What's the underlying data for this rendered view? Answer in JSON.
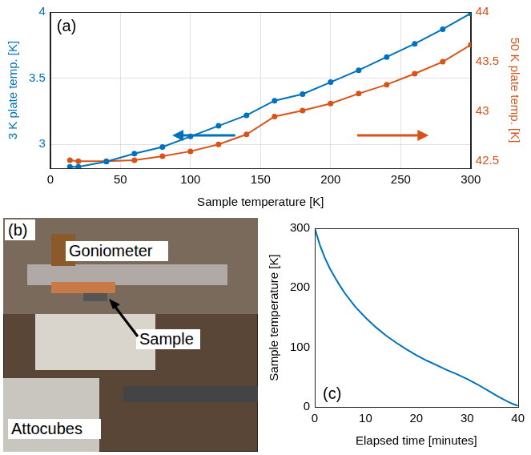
{
  "chart_data": [
    {
      "panel": "(a)",
      "type": "line",
      "x_label": "Sample temperature [K]",
      "y_label": "3 K plate temp. [K]",
      "y2_label": "50 K plate temp. [K]",
      "x": [
        14,
        20,
        40,
        60,
        80,
        100,
        120,
        140,
        160,
        180,
        200,
        220,
        240,
        260,
        280,
        300
      ],
      "series": [
        {
          "color": "#0072BD",
          "marker": "circle",
          "values": [
            2.83,
            2.83,
            2.87,
            2.93,
            2.98,
            3.06,
            3.14,
            3.22,
            3.33,
            3.38,
            3.47,
            3.56,
            3.66,
            3.76,
            3.87,
            3.99
          ]
        },
        {
          "color": "#D95319",
          "marker": "circle",
          "axis": "y2",
          "values": [
            42.51,
            42.5,
            42.5,
            42.51,
            42.55,
            42.6,
            42.67,
            42.77,
            42.95,
            43.01,
            43.08,
            43.18,
            43.27,
            43.38,
            43.5,
            43.67
          ]
        }
      ],
      "xlim": [
        0,
        300
      ],
      "xticks": [
        0,
        50,
        100,
        150,
        200,
        250,
        300
      ],
      "ylim": [
        2.82,
        4
      ],
      "yticks": [
        3,
        3.5,
        4
      ],
      "y2lim": [
        42.43,
        44
      ],
      "y2ticks": [
        42.5,
        43,
        43.5,
        44
      ],
      "grid": true
    },
    {
      "panel": "(b)",
      "type": "image",
      "annotations": [
        "Goniometer",
        "Sample",
        "Attocubes"
      ]
    },
    {
      "panel": "(c)",
      "type": "line",
      "x_label": "Elapsed time [minutes]",
      "y_label": "Sample temperature [K]",
      "x": [
        0,
        1,
        2,
        3,
        4,
        5,
        6,
        8,
        10,
        12,
        14,
        16,
        18,
        20,
        22,
        24,
        26,
        28,
        30,
        32,
        34,
        36,
        38,
        39,
        40
      ],
      "series": [
        {
          "color": "#0072BD",
          "marker": "none",
          "values": [
            300,
            272,
            250,
            232,
            217,
            203,
            190,
            168,
            150,
            134,
            120,
            108,
            97,
            87,
            78,
            70,
            62,
            55,
            47,
            38,
            28,
            18,
            9,
            5,
            2
          ]
        }
      ],
      "xlim": [
        0,
        40
      ],
      "xticks": [
        0,
        10,
        20,
        30,
        40
      ],
      "ylim": [
        0,
        300
      ],
      "yticks": [
        0,
        100,
        200,
        300
      ],
      "grid": false
    }
  ]
}
